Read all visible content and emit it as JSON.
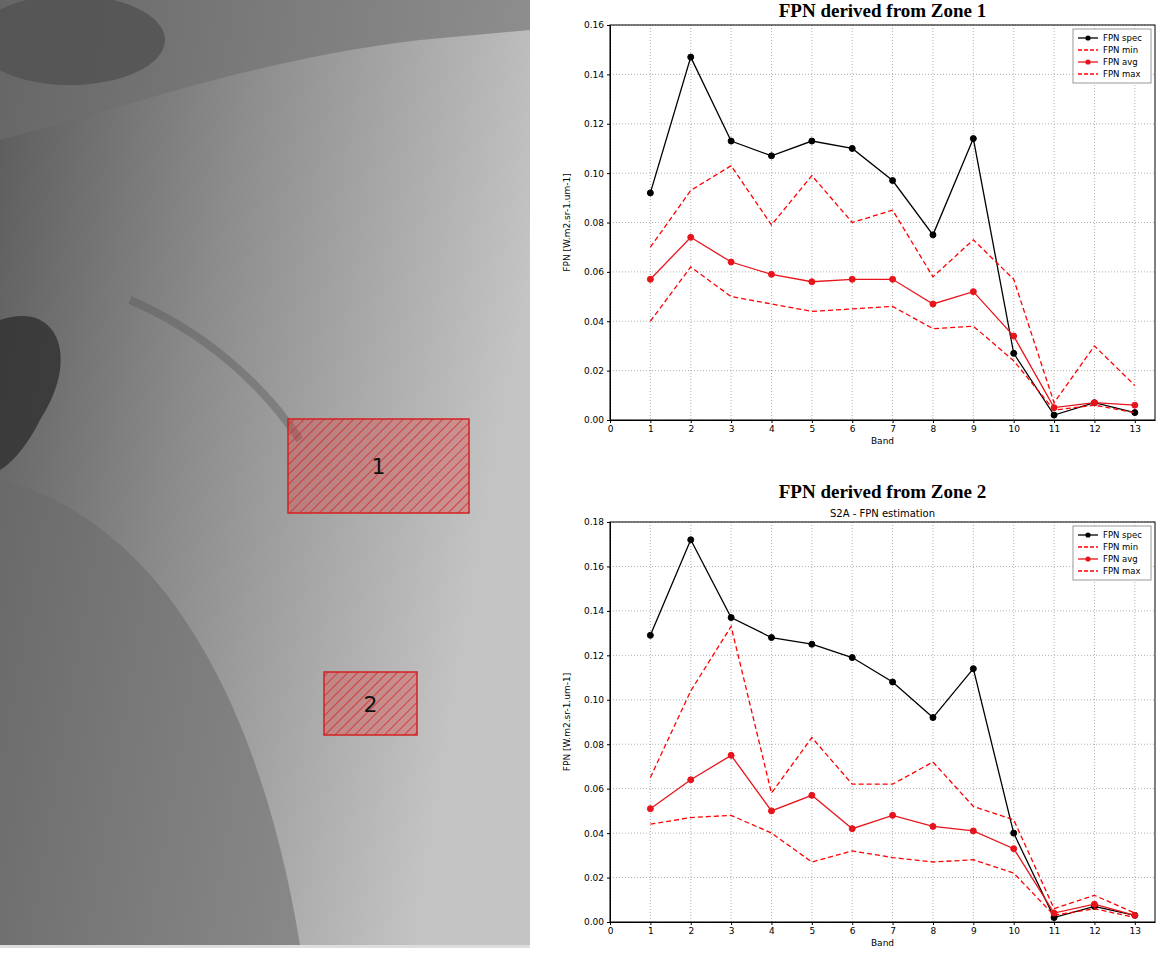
{
  "image": {
    "zones": [
      {
        "label": "1"
      },
      {
        "label": "2"
      }
    ]
  },
  "chart_data": [
    {
      "type": "line",
      "title": "FPN derived from Zone 1",
      "x_label": "Band",
      "y_label": "FPN [W.m2.sr-1.um-1]",
      "x": [
        1,
        2,
        3,
        4,
        5,
        6,
        7,
        8,
        9,
        10,
        11,
        12,
        13
      ],
      "xlim": [
        0,
        13.5
      ],
      "xticks": [
        0,
        1,
        2,
        3,
        4,
        5,
        6,
        7,
        8,
        9,
        10,
        11,
        12,
        13
      ],
      "ylim": [
        0,
        0.16
      ],
      "yticks": [
        {
          "value": 0,
          "label": "0.00"
        },
        {
          "value": 0.02,
          "label": "0.02"
        },
        {
          "value": 0.04,
          "label": "0.04"
        },
        {
          "value": 0.06,
          "label": "0.06"
        },
        {
          "value": 0.08,
          "label": "0.08"
        },
        {
          "value": 0.1,
          "label": "0.10"
        },
        {
          "value": 0.12,
          "label": "0.12"
        },
        {
          "value": 0.14,
          "label": "0.14"
        },
        {
          "value": 0.16,
          "label": "0.16"
        }
      ],
      "grid": true,
      "legend": "upper right",
      "series": [
        {
          "name": "FPN spec",
          "color": "#000000",
          "marker": "circle",
          "line_style": "solid",
          "values": [
            0.092,
            0.147,
            0.113,
            0.107,
            0.113,
            0.11,
            0.097,
            0.075,
            0.114,
            0.027,
            0.002,
            0.007,
            0.003
          ]
        },
        {
          "name": "FPN min",
          "color": "#ff0000",
          "marker": "none",
          "line_style": "dashed",
          "values": [
            0.04,
            0.062,
            0.05,
            0.047,
            0.044,
            0.045,
            0.046,
            0.037,
            0.038,
            0.024,
            0.004,
            0.006,
            0.003
          ]
        },
        {
          "name": "FPN avg",
          "color": "#e8141c",
          "marker": "circle",
          "line_style": "solid",
          "values": [
            0.057,
            0.074,
            0.064,
            0.059,
            0.056,
            0.057,
            0.057,
            0.047,
            0.052,
            0.034,
            0.005,
            0.007,
            0.006
          ]
        },
        {
          "name": "FPN max",
          "color": "#ff0000",
          "marker": "none",
          "line_style": "dashed",
          "values": [
            0.07,
            0.093,
            0.103,
            0.079,
            0.099,
            0.08,
            0.085,
            0.058,
            0.073,
            0.057,
            0.007,
            0.03,
            0.014
          ]
        }
      ]
    },
    {
      "type": "line",
      "title": "FPN derived from Zone 2",
      "subtitle": "S2A - FPN estimation",
      "x_label": "Band",
      "y_label": "FPN [W.m2.sr-1.um-1]",
      "x": [
        1,
        2,
        3,
        4,
        5,
        6,
        7,
        8,
        9,
        10,
        11,
        12,
        13
      ],
      "xlim": [
        0,
        13.5
      ],
      "xticks": [
        0,
        1,
        2,
        3,
        4,
        5,
        6,
        7,
        8,
        9,
        10,
        11,
        12,
        13
      ],
      "ylim": [
        0,
        0.18
      ],
      "yticks": [
        {
          "value": 0,
          "label": "0.00"
        },
        {
          "value": 0.02,
          "label": "0.02"
        },
        {
          "value": 0.04,
          "label": "0.04"
        },
        {
          "value": 0.06,
          "label": "0.06"
        },
        {
          "value": 0.08,
          "label": "0.08"
        },
        {
          "value": 0.1,
          "label": "0.10"
        },
        {
          "value": 0.12,
          "label": "0.12"
        },
        {
          "value": 0.14,
          "label": "0.14"
        },
        {
          "value": 0.16,
          "label": "0.16"
        },
        {
          "value": 0.18,
          "label": "0.18"
        }
      ],
      "grid": true,
      "legend": "upper right",
      "series": [
        {
          "name": "FPN spec",
          "color": "#000000",
          "marker": "circle",
          "line_style": "solid",
          "values": [
            0.129,
            0.172,
            0.137,
            0.128,
            0.125,
            0.119,
            0.108,
            0.092,
            0.114,
            0.04,
            0.002,
            0.007,
            0.003
          ]
        },
        {
          "name": "FPN min",
          "color": "#ff0000",
          "marker": "none",
          "line_style": "dashed",
          "values": [
            0.044,
            0.047,
            0.048,
            0.04,
            0.027,
            0.032,
            0.029,
            0.027,
            0.028,
            0.022,
            0.003,
            0.006,
            0.002
          ]
        },
        {
          "name": "FPN avg",
          "color": "#e8141c",
          "marker": "circle",
          "line_style": "solid",
          "values": [
            0.051,
            0.064,
            0.075,
            0.05,
            0.057,
            0.042,
            0.048,
            0.043,
            0.041,
            0.033,
            0.004,
            0.008,
            0.003
          ]
        },
        {
          "name": "FPN max",
          "color": "#ff0000",
          "marker": "none",
          "line_style": "dashed",
          "values": [
            0.065,
            0.104,
            0.133,
            0.058,
            0.083,
            0.062,
            0.062,
            0.072,
            0.052,
            0.046,
            0.006,
            0.012,
            0.004
          ]
        }
      ]
    }
  ]
}
